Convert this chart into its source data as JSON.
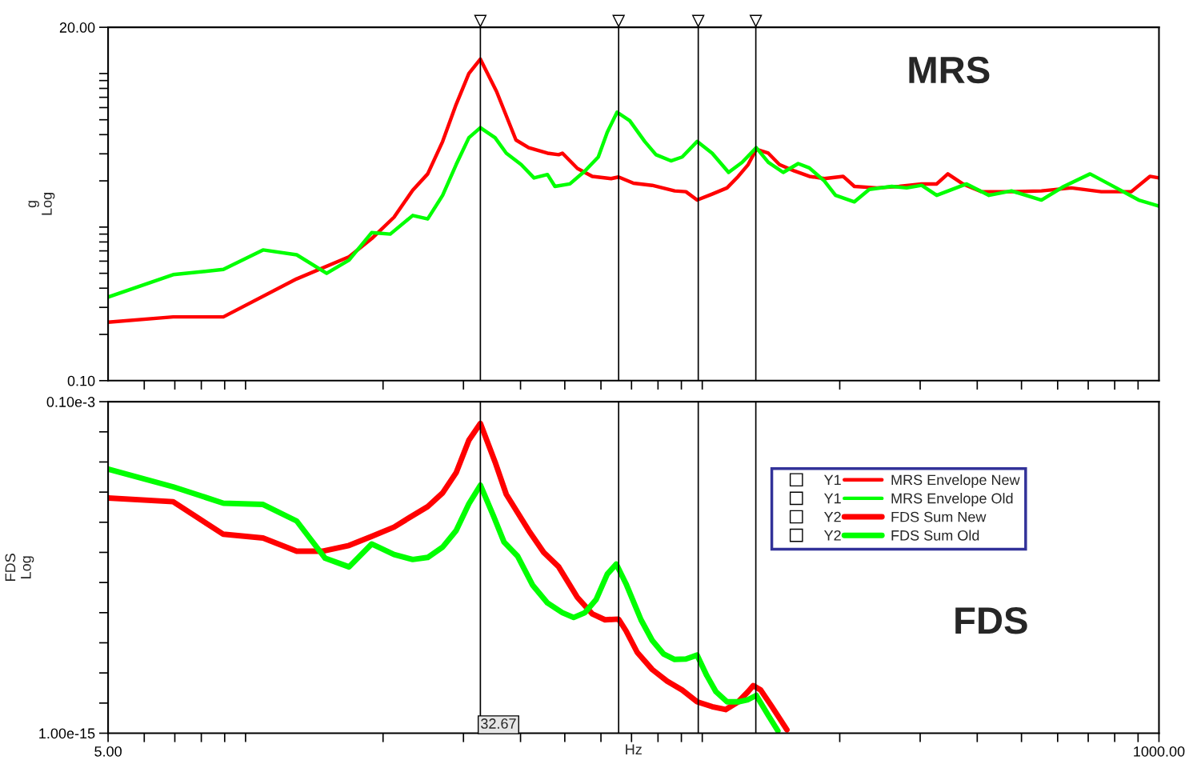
{
  "chart_data": [
    {
      "type": "line",
      "ylabel": "g\nLog",
      "log": "xy",
      "tick_labels": "y",
      "legend": "bottom right",
      "xlim": [
        5,
        1000
      ],
      "ylim": [
        0.1,
        20
      ],
      "xticks": [
        {
          "value": 6,
          "label": null
        },
        {
          "value": 7,
          "label": null
        },
        {
          "value": 8,
          "label": null
        },
        {
          "value": 9,
          "label": null
        },
        {
          "value": 10,
          "label": null
        },
        {
          "value": 20,
          "label": null
        },
        {
          "value": 30,
          "label": null
        },
        {
          "value": 40,
          "label": null
        },
        {
          "value": 50,
          "label": null
        },
        {
          "value": 60,
          "label": null
        },
        {
          "value": 70,
          "label": null
        },
        {
          "value": 80,
          "label": null
        },
        {
          "value": 90,
          "label": null
        },
        {
          "value": 100,
          "label": null
        },
        {
          "value": 200,
          "label": null
        },
        {
          "value": 300,
          "label": null
        },
        {
          "value": 400,
          "label": null
        },
        {
          "value": 500,
          "label": null
        },
        {
          "value": 600,
          "label": null
        },
        {
          "value": 700,
          "label": null
        },
        {
          "value": 800,
          "label": null
        },
        {
          "value": 900,
          "label": null
        }
      ],
      "yticks": [
        {
          "value": 0.1,
          "label": "0.10"
        },
        {
          "value": 0.2,
          "label": null
        },
        {
          "value": 0.3,
          "label": null
        },
        {
          "value": 0.4,
          "label": null
        },
        {
          "value": 0.5,
          "label": null
        },
        {
          "value": 0.6,
          "label": null
        },
        {
          "value": 0.7,
          "label": null
        },
        {
          "value": 0.8,
          "label": null
        },
        {
          "value": 0.9,
          "label": null
        },
        {
          "value": 1,
          "label": null
        },
        {
          "value": 2,
          "label": null
        },
        {
          "value": 3,
          "label": null
        },
        {
          "value": 4,
          "label": null
        },
        {
          "value": 5,
          "label": null
        },
        {
          "value": 6,
          "label": null
        },
        {
          "value": 7,
          "label": null
        },
        {
          "value": 8,
          "label": null
        },
        {
          "value": 9,
          "label": null
        },
        {
          "value": 10,
          "label": null
        },
        {
          "value": 20,
          "label": "20.00"
        }
      ],
      "annotations": [
        "MRS"
      ],
      "ref_lines": [
        {
          "axis": "x",
          "value": 32.67,
          "color": "#000000"
        },
        {
          "axis": "x",
          "value": 65.6,
          "color": "#000000"
        },
        {
          "axis": "x",
          "value": 98,
          "color": "#000000"
        },
        {
          "axis": "x",
          "value": 131,
          "color": "#000000"
        }
      ],
      "series": [
        {
          "name": "MRS Envelope New",
          "color": "#ff0000",
          "x": [
            5,
            6.94,
            8.94,
            12.94,
            16.85,
            18.88,
            21.14,
            23.23,
            25.05,
            27.01,
            28.91,
            30.83,
            32.67,
            35.44,
            39.09,
            41.69,
            45.82,
            48.49,
            49.41,
            53.28,
            57.44,
            63.14,
            65.57,
            70.7,
            77.7,
            87.02,
            92.09,
            97.45,
            105.1,
            113.3,
            119.9,
            126,
            131.3,
            139.5,
            147.6,
            159.1,
            171.6,
            185,
            203.4,
            215.3,
            241.1,
            269.9,
            302.3,
            326.1,
            344.9,
            372,
            408.8,
            475.3,
            552.9,
            642.9,
            747.8,
            869.6,
            955.4,
            1000
          ],
          "values": [
            0.24,
            0.26,
            0.26,
            0.46,
            0.64,
            0.84,
            1.16,
            1.74,
            2.22,
            3.61,
            6.29,
            10.0,
            12.4,
            7.65,
            3.69,
            3.29,
            3.03,
            2.96,
            3.03,
            2.41,
            2.14,
            2.07,
            2.12,
            1.93,
            1.87,
            1.72,
            1.7,
            1.5,
            1.64,
            1.8,
            2.14,
            2.55,
            3.21,
            3.03,
            2.55,
            2.32,
            2.14,
            2.07,
            2.14,
            1.84,
            1.8,
            1.84,
            1.91,
            1.91,
            2.22,
            1.91,
            1.7,
            1.7,
            1.72,
            1.8,
            1.7,
            1.7,
            2.14,
            2.09
          ]
        },
        {
          "name": "MRS Envelope Old",
          "color": "#00ff00",
          "x": [
            5,
            6.94,
            8.94,
            10.92,
            12.94,
            15.05,
            16.85,
            18.88,
            20.74,
            23.23,
            25.05,
            27.01,
            28.91,
            30.83,
            32.67,
            35.18,
            37.23,
            40.14,
            42.81,
            45.82,
            47.58,
            51.3,
            55.34,
            59.2,
            61.95,
            65.08,
            69.38,
            74.82,
            79.18,
            85.39,
            90.36,
            97.45,
            105.1,
            114.2,
            122.2,
            131.3,
            139.5,
            150.4,
            162.2,
            171.6,
            185,
            195.8,
            215.3,
            232.1,
            259.9,
            280.3,
            302.3,
            326.1,
            379.1,
            424.5,
            475.3,
            552.9,
            619.2,
            706.6,
            776.6,
            902.8,
            1000
          ],
          "values": [
            0.35,
            0.49,
            0.53,
            0.71,
            0.66,
            0.5,
            0.61,
            0.92,
            0.9,
            1.19,
            1.13,
            1.61,
            2.55,
            3.82,
            4.44,
            3.82,
            3.03,
            2.55,
            2.09,
            2.2,
            1.84,
            1.91,
            2.32,
            2.86,
            4.15,
            5.6,
            4.93,
            3.61,
            2.96,
            2.7,
            2.86,
            3.61,
            3.03,
            2.27,
            2.64,
            3.29,
            2.64,
            2.27,
            2.59,
            2.43,
            2.0,
            1.61,
            1.46,
            1.76,
            1.84,
            1.8,
            1.87,
            1.61,
            1.91,
            1.61,
            1.72,
            1.5,
            1.84,
            2.22,
            1.91,
            1.5,
            1.37
          ]
        }
      ]
    },
    {
      "type": "line",
      "xlabel": "Hz",
      "ylabel": "FDS\nLog",
      "log": "xy",
      "legend": "right",
      "xlim": [
        5,
        1000
      ],
      "ylim": [
        1e-15,
        0.0001
      ],
      "xticks": [
        {
          "value": 5,
          "label": "5.00"
        },
        {
          "value": 6,
          "label": null
        },
        {
          "value": 7,
          "label": null
        },
        {
          "value": 8,
          "label": null
        },
        {
          "value": 9,
          "label": null
        },
        {
          "value": 10,
          "label": null
        },
        {
          "value": 20,
          "label": null
        },
        {
          "value": 30,
          "label": null
        },
        {
          "value": 40,
          "label": null
        },
        {
          "value": 50,
          "label": null
        },
        {
          "value": 60,
          "label": null
        },
        {
          "value": 70,
          "label": null
        },
        {
          "value": 80,
          "label": null
        },
        {
          "value": 90,
          "label": null
        },
        {
          "value": 100,
          "label": null
        },
        {
          "value": 200,
          "label": null
        },
        {
          "value": 300,
          "label": null
        },
        {
          "value": 400,
          "label": null
        },
        {
          "value": 500,
          "label": null
        },
        {
          "value": 600,
          "label": null
        },
        {
          "value": 700,
          "label": null
        },
        {
          "value": 800,
          "label": null
        },
        {
          "value": 900,
          "label": null
        },
        {
          "value": 1000,
          "label": "1000.00"
        }
      ],
      "yticks": [
        {
          "value": 1e-15,
          "label": "1.00e-15"
        },
        {
          "value": 1e-14,
          "label": null
        },
        {
          "value": 1e-13,
          "label": null
        },
        {
          "value": 1e-12,
          "label": null
        },
        {
          "value": 1e-11,
          "label": null
        },
        {
          "value": 1e-10,
          "label": null
        },
        {
          "value": 1e-09,
          "label": null
        },
        {
          "value": 1e-08,
          "label": null
        },
        {
          "value": 1e-07,
          "label": null
        },
        {
          "value": 1e-06,
          "label": null
        },
        {
          "value": 1e-05,
          "label": null
        },
        {
          "value": 0.0001,
          "label": "0.10e-3"
        }
      ],
      "annotations": [
        "FDS",
        "Y1",
        "Y1",
        "Y2",
        "Y2"
      ],
      "ref_lines": [
        {
          "axis": "x",
          "value": 32.67,
          "label": "32.67",
          "color": "#000000"
        },
        {
          "axis": "x",
          "value": 65.6,
          "color": "#000000"
        },
        {
          "axis": "x",
          "value": 98,
          "color": "#000000"
        },
        {
          "axis": "x",
          "value": 131,
          "color": "#000000"
        }
      ],
      "series": [
        {
          "name": "FDS Sum New",
          "color": "#ff0000",
          "x": [
            5,
            6.94,
            8.94,
            10.92,
            12.94,
            14.77,
            16.85,
            18.88,
            21.14,
            22.8,
            25.05,
            27.01,
            28.91,
            30.83,
            32.67,
            35.18,
            37.23,
            41.69,
            44.96,
            48.49,
            53.28,
            57.44,
            61.25,
            65.57,
            68.08,
            72.05,
            77.7,
            83.79,
            90.36,
            97.45,
            105.1,
            112.5,
            119.9,
            126,
            129.3,
            134.3,
            142.1,
            153.2
          ],
          "values": [
            6.4e-08,
            4.8e-08,
            4e-09,
            3e-09,
            1.1e-09,
            1.1e-09,
            1.7e-09,
            3.4e-09,
            6.9e-09,
            1.4e-08,
            3.3e-08,
            9.4e-08,
            4.4e-07,
            5.3e-06,
            1.9e-05,
            1e-06,
            8.4e-08,
            5.3e-09,
            1e-09,
            3.3e-10,
            3.2e-11,
            9.1e-12,
            5.8e-12,
            6.1e-12,
            2.5e-12,
            4.8e-13,
            1.3e-13,
            5.3e-14,
            2.7e-14,
            1.1e-14,
            7.6e-15,
            6.1e-15,
            1.1e-14,
            2.4e-14,
            3.8e-14,
            2.7e-14,
            7.6e-15,
            1.3e-15
          ]
        },
        {
          "name": "FDS Sum Old",
          "color": "#00ff00",
          "x": [
            5,
            6.94,
            8.94,
            10.92,
            12.94,
            14.94,
            16.85,
            18.88,
            21.14,
            23.23,
            25.05,
            27.01,
            28.91,
            30.83,
            32.67,
            34.91,
            36.81,
            39.39,
            42.49,
            45.82,
            49.41,
            52.28,
            55.34,
            58.54,
            61.95,
            64.82,
            68.08,
            73.43,
            77.7,
            82.22,
            87.02,
            92.09,
            97.45,
            102.3,
            107.1,
            113.3,
            119.9,
            126,
            131.3,
            139.5,
            146.4
          ],
          "values": [
            5.8e-07,
            1.5e-07,
            4.3e-08,
            3.9e-08,
            1.1e-08,
            6.4e-10,
            3.3e-10,
            1.9e-09,
            8.5e-10,
            5.8e-10,
            6.8e-10,
            1.5e-09,
            5.3e-09,
            4.1e-08,
            1.7e-07,
            1.6e-08,
            2.2e-09,
            7.6e-10,
            8.3e-11,
            2.1e-11,
            1e-11,
            6.9e-12,
            1e-11,
            2.7e-11,
            1.9e-10,
            4.1e-10,
            9.1e-11,
            5.8e-12,
            1.2e-12,
            4.3e-13,
            2.8e-13,
            2.9e-13,
            3.9e-13,
            8.2e-14,
            2.4e-14,
            1.1e-14,
            1.1e-14,
            1.3e-14,
            1.8e-14,
            3.9e-15,
            1.2e-15
          ]
        }
      ]
    }
  ]
}
